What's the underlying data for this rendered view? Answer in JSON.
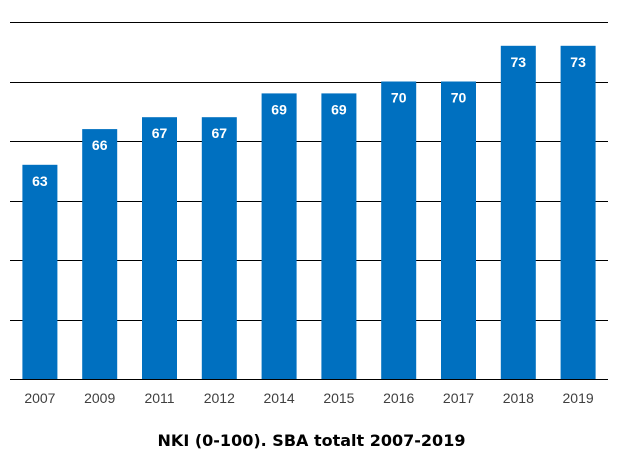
{
  "chart_data": {
    "type": "bar",
    "title": "NKI (0-100). SBA totalt 2007-2019",
    "categories": [
      "2007",
      "2009",
      "2011",
      "2012",
      "2014",
      "2015",
      "2016",
      "2017",
      "2018",
      "2019"
    ],
    "values": [
      63,
      66,
      67,
      67,
      69,
      69,
      70,
      70,
      73,
      73
    ],
    "data_labels": [
      "63",
      "66",
      "67",
      "67",
      "69",
      "69",
      "70",
      "70",
      "73",
      "73"
    ],
    "xlabel": "",
    "ylabel": "",
    "ylim": [
      45,
      75
    ],
    "y_axis_labels_shown": false,
    "grid": true,
    "legend": "none",
    "colors": {
      "bar": "#0070c0",
      "data_label": "#ffffff"
    }
  }
}
